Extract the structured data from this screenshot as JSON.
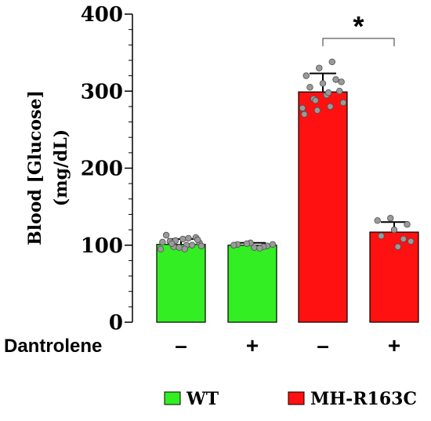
{
  "chart_data": {
    "type": "bar",
    "ylabel_line1": "Blood [Glucose]",
    "ylabel_line2": "(mg/dL)",
    "ylim": [
      0,
      400
    ],
    "yticks": [
      0,
      100,
      200,
      300,
      400
    ],
    "treatment_label": "Dantrolene",
    "groups": [
      {
        "treatment": "–",
        "genotype": "WT",
        "color": "#33ee22",
        "mean": 101,
        "error": 7,
        "points": [
          95,
          98,
          100,
          103,
          105,
          108,
          110,
          113,
          97,
          100,
          104,
          106,
          109,
          99,
          102,
          95,
          107
        ]
      },
      {
        "treatment": "+",
        "genotype": "WT",
        "color": "#33ee22",
        "mean": 100,
        "error": 3,
        "points": [
          97,
          99,
          101,
          103,
          98,
          100,
          102,
          96,
          101
        ]
      },
      {
        "treatment": "–",
        "genotype": "MH-R163C",
        "color": "#ff1111",
        "mean": 299,
        "error": 24,
        "points": [
          270,
          275,
          280,
          285,
          290,
          295,
          300,
          305,
          310,
          315,
          320,
          330,
          338,
          278,
          288,
          298,
          312
        ]
      },
      {
        "treatment": "+",
        "genotype": "MH-R163C",
        "color": "#ff1111",
        "mean": 117,
        "error": 13,
        "points": [
          98,
          105,
          112,
          120,
          127,
          132,
          135,
          108
        ]
      }
    ],
    "significance": {
      "from": 2,
      "to": 3,
      "label": "*"
    },
    "legend": [
      {
        "label": "WT",
        "color": "#33ee22"
      },
      {
        "label": "MH-R163C",
        "color": "#ff1111"
      }
    ]
  }
}
